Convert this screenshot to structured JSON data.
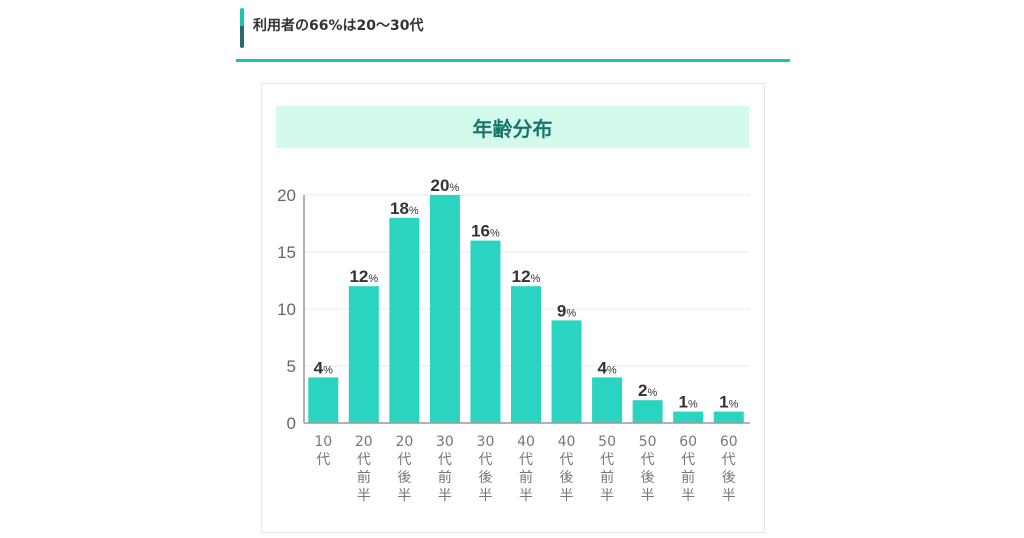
{
  "section": {
    "heading": "利用者の66%は20〜30代"
  },
  "chart_data": {
    "type": "bar",
    "title": "年齢分布",
    "categories": [
      "10代",
      "20代前半",
      "20代後半",
      "30代前半",
      "30代後半",
      "40代前半",
      "40代後半",
      "50代前半",
      "50代後半",
      "60代前半",
      "60代後半"
    ],
    "values": [
      4,
      12,
      18,
      20,
      16,
      12,
      9,
      4,
      2,
      1,
      1
    ],
    "data_label_suffix": "%",
    "yticks": [
      0,
      5,
      10,
      15,
      20
    ],
    "ylim": [
      0,
      20
    ],
    "grid": true,
    "bar_color": "#2ad4c0"
  }
}
